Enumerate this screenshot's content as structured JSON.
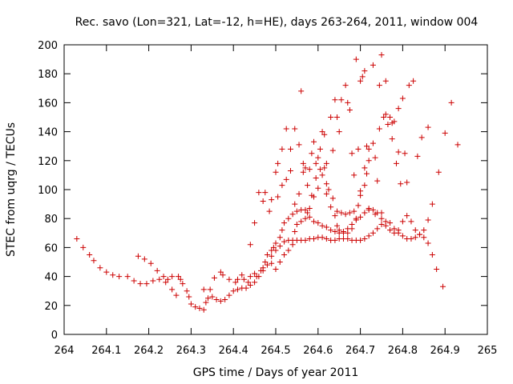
{
  "chart_data": {
    "type": "scatter",
    "title": "Rec. savo (Lon=321, Lat=-12, h=HE), days 263-264, 2011, window 004",
    "xlabel": "GPS time / Days of year 2011",
    "ylabel": "STEC from uqrg / TECUs",
    "xlim": [
      264,
      265
    ],
    "ylim": [
      0,
      200
    ],
    "xticks": [
      264,
      264.1,
      264.2,
      264.3,
      264.4,
      264.5,
      264.6,
      264.7,
      264.8,
      264.9,
      265
    ],
    "xtick_labels": [
      "264",
      "264.1",
      "264.2",
      "264.3",
      "264.4",
      "264.5",
      "264.6",
      "264.7",
      "264.8",
      "264.9",
      "265"
    ],
    "yticks": [
      0,
      20,
      40,
      60,
      80,
      100,
      120,
      140,
      160,
      180,
      200
    ],
    "ytick_labels": [
      "0",
      "20",
      "40",
      "60",
      "80",
      "100",
      "120",
      "140",
      "160",
      "180",
      "200"
    ],
    "grid": false,
    "marker_color": "#cc0000",
    "marker": "plus",
    "points": [
      [
        264.03,
        66
      ],
      [
        264.045,
        60
      ],
      [
        264.06,
        55
      ],
      [
        264.07,
        51
      ],
      [
        264.085,
        46
      ],
      [
        264.1,
        43
      ],
      [
        264.115,
        41
      ],
      [
        264.13,
        40
      ],
      [
        264.15,
        40
      ],
      [
        264.165,
        37
      ],
      [
        264.175,
        54
      ],
      [
        264.19,
        52
      ],
      [
        264.205,
        49
      ],
      [
        264.18,
        35
      ],
      [
        264.195,
        35
      ],
      [
        264.21,
        37
      ],
      [
        264.225,
        38
      ],
      [
        264.22,
        44
      ],
      [
        264.235,
        40
      ],
      [
        264.245,
        38
      ],
      [
        264.24,
        36
      ],
      [
        264.255,
        31
      ],
      [
        264.265,
        27
      ],
      [
        264.255,
        40
      ],
      [
        264.27,
        40
      ],
      [
        264.275,
        38
      ],
      [
        264.28,
        35
      ],
      [
        264.29,
        30
      ],
      [
        264.295,
        26
      ],
      [
        264.3,
        21
      ],
      [
        264.31,
        19
      ],
      [
        264.32,
        18
      ],
      [
        264.33,
        17
      ],
      [
        264.335,
        22
      ],
      [
        264.34,
        25
      ],
      [
        264.35,
        26
      ],
      [
        264.36,
        24
      ],
      [
        264.37,
        23
      ],
      [
        264.38,
        24
      ],
      [
        264.39,
        27
      ],
      [
        264.4,
        30
      ],
      [
        264.41,
        31
      ],
      [
        264.42,
        32
      ],
      [
        264.43,
        32
      ],
      [
        264.44,
        34
      ],
      [
        264.45,
        36
      ],
      [
        264.46,
        40
      ],
      [
        264.47,
        44
      ],
      [
        264.48,
        48
      ],
      [
        264.49,
        54
      ],
      [
        264.5,
        58
      ],
      [
        264.51,
        61
      ],
      [
        264.52,
        64
      ],
      [
        264.53,
        65
      ],
      [
        264.54,
        65
      ],
      [
        264.55,
        65
      ],
      [
        264.56,
        65
      ],
      [
        264.57,
        65
      ],
      [
        264.58,
        66
      ],
      [
        264.59,
        66
      ],
      [
        264.6,
        67
      ],
      [
        264.61,
        67
      ],
      [
        264.62,
        66
      ],
      [
        264.63,
        65
      ],
      [
        264.64,
        65
      ],
      [
        264.65,
        66
      ],
      [
        264.66,
        66
      ],
      [
        264.67,
        66
      ],
      [
        264.68,
        65
      ],
      [
        264.69,
        65
      ],
      [
        264.7,
        65
      ],
      [
        264.71,
        66
      ],
      [
        264.72,
        68
      ],
      [
        264.73,
        70
      ],
      [
        264.74,
        73
      ],
      [
        264.75,
        76
      ],
      [
        264.76,
        78
      ],
      [
        264.77,
        77
      ],
      [
        264.78,
        73
      ],
      [
        264.79,
        70
      ],
      [
        264.8,
        68
      ],
      [
        264.81,
        66
      ],
      [
        264.82,
        66
      ],
      [
        264.83,
        67
      ],
      [
        264.84,
        69
      ],
      [
        264.85,
        72
      ],
      [
        264.86,
        63
      ],
      [
        264.87,
        55
      ],
      [
        264.88,
        45
      ],
      [
        264.895,
        33
      ],
      [
        264.33,
        31
      ],
      [
        264.345,
        31
      ],
      [
        264.355,
        39
      ],
      [
        264.37,
        43
      ],
      [
        264.375,
        41
      ],
      [
        264.39,
        38
      ],
      [
        264.405,
        36
      ],
      [
        264.41,
        38
      ],
      [
        264.42,
        41
      ],
      [
        264.425,
        38
      ],
      [
        264.435,
        36
      ],
      [
        264.44,
        40
      ],
      [
        264.45,
        42
      ],
      [
        264.455,
        40
      ],
      [
        264.465,
        44
      ],
      [
        264.47,
        46
      ],
      [
        264.475,
        50
      ],
      [
        264.48,
        55
      ],
      [
        264.49,
        58
      ],
      [
        264.495,
        60
      ],
      [
        264.5,
        63
      ],
      [
        264.51,
        67
      ],
      [
        264.515,
        72
      ],
      [
        264.52,
        77
      ],
      [
        264.53,
        80
      ],
      [
        264.54,
        83
      ],
      [
        264.55,
        85
      ],
      [
        264.56,
        86
      ],
      [
        264.57,
        86
      ],
      [
        264.575,
        84
      ],
      [
        264.58,
        81
      ],
      [
        264.59,
        78
      ],
      [
        264.6,
        77
      ],
      [
        264.61,
        75
      ],
      [
        264.62,
        74
      ],
      [
        264.63,
        72
      ],
      [
        264.64,
        71
      ],
      [
        264.65,
        70
      ],
      [
        264.66,
        71
      ],
      [
        264.67,
        73
      ],
      [
        264.68,
        76
      ],
      [
        264.69,
        79
      ],
      [
        264.7,
        81
      ],
      [
        264.71,
        84
      ],
      [
        264.72,
        86
      ],
      [
        264.73,
        86
      ],
      [
        264.74,
        84
      ],
      [
        264.75,
        80
      ],
      [
        264.76,
        75
      ],
      [
        264.77,
        72
      ],
      [
        264.78,
        70
      ],
      [
        264.79,
        72
      ],
      [
        264.8,
        78
      ],
      [
        264.81,
        82
      ],
      [
        264.82,
        78
      ],
      [
        264.83,
        72
      ],
      [
        264.84,
        69
      ],
      [
        264.85,
        67
      ],
      [
        264.86,
        79
      ],
      [
        264.87,
        90
      ],
      [
        264.885,
        112
      ],
      [
        264.9,
        139
      ],
      [
        264.915,
        160
      ],
      [
        264.93,
        131
      ],
      [
        264.44,
        62
      ],
      [
        264.45,
        77
      ],
      [
        264.46,
        98
      ],
      [
        264.47,
        92
      ],
      [
        264.475,
        98
      ],
      [
        264.485,
        85
      ],
      [
        264.49,
        93
      ],
      [
        264.5,
        112
      ],
      [
        264.505,
        118
      ],
      [
        264.515,
        128
      ],
      [
        264.525,
        142
      ],
      [
        264.535,
        128
      ],
      [
        264.545,
        142
      ],
      [
        264.555,
        131
      ],
      [
        264.56,
        168
      ],
      [
        264.565,
        118
      ],
      [
        264.57,
        115
      ],
      [
        264.58,
        114
      ],
      [
        264.585,
        125
      ],
      [
        264.59,
        133
      ],
      [
        264.595,
        118
      ],
      [
        264.6,
        122
      ],
      [
        264.605,
        128
      ],
      [
        264.61,
        140
      ],
      [
        264.615,
        138
      ],
      [
        264.62,
        118
      ],
      [
        264.625,
        100
      ],
      [
        264.63,
        150
      ],
      [
        264.635,
        127
      ],
      [
        264.64,
        162
      ],
      [
        264.645,
        150
      ],
      [
        264.65,
        140
      ],
      [
        264.655,
        162
      ],
      [
        264.665,
        172
      ],
      [
        264.67,
        160
      ],
      [
        264.675,
        155
      ],
      [
        264.68,
        125
      ],
      [
        264.685,
        110
      ],
      [
        264.69,
        190
      ],
      [
        264.695,
        128
      ],
      [
        264.7,
        175
      ],
      [
        264.705,
        178
      ],
      [
        264.71,
        182
      ],
      [
        264.715,
        130
      ],
      [
        264.72,
        128
      ],
      [
        264.73,
        186
      ],
      [
        264.735,
        122
      ],
      [
        264.74,
        106
      ],
      [
        264.745,
        172
      ],
      [
        264.75,
        193
      ],
      [
        264.755,
        150
      ],
      [
        264.76,
        175
      ],
      [
        264.765,
        145
      ],
      [
        264.77,
        150
      ],
      [
        264.775,
        146
      ],
      [
        264.78,
        147
      ],
      [
        264.785,
        118
      ],
      [
        264.79,
        156
      ],
      [
        264.795,
        104
      ],
      [
        264.8,
        163
      ],
      [
        264.805,
        125
      ],
      [
        264.81,
        105
      ],
      [
        264.815,
        172
      ],
      [
        264.825,
        175
      ],
      [
        264.835,
        123
      ],
      [
        264.845,
        136
      ],
      [
        264.86,
        143
      ],
      [
        264.49,
        49
      ],
      [
        264.5,
        45
      ],
      [
        264.51,
        50
      ],
      [
        264.52,
        55
      ],
      [
        264.53,
        58
      ],
      [
        264.54,
        62
      ],
      [
        264.545,
        71
      ],
      [
        264.55,
        76
      ],
      [
        264.56,
        78
      ],
      [
        264.57,
        80
      ],
      [
        264.58,
        87
      ],
      [
        264.59,
        95
      ],
      [
        264.6,
        101
      ],
      [
        264.61,
        110
      ],
      [
        264.615,
        115
      ],
      [
        264.62,
        97
      ],
      [
        264.63,
        88
      ],
      [
        264.64,
        82
      ],
      [
        264.645,
        75
      ],
      [
        264.65,
        72
      ],
      [
        264.66,
        70
      ],
      [
        264.67,
        70
      ],
      [
        264.68,
        73
      ],
      [
        264.69,
        80
      ],
      [
        264.695,
        89
      ],
      [
        264.7,
        96
      ],
      [
        264.71,
        103
      ],
      [
        264.715,
        111
      ],
      [
        264.72,
        120
      ],
      [
        264.73,
        132
      ],
      [
        264.745,
        142
      ],
      [
        264.76,
        152
      ],
      [
        264.775,
        135
      ],
      [
        264.79,
        126
      ],
      [
        264.505,
        95
      ],
      [
        264.515,
        103
      ],
      [
        264.525,
        107
      ],
      [
        264.535,
        113
      ],
      [
        264.545,
        90
      ],
      [
        264.555,
        97
      ],
      [
        264.565,
        112
      ],
      [
        264.575,
        103
      ],
      [
        264.585,
        96
      ],
      [
        264.595,
        108
      ],
      [
        264.605,
        114
      ],
      [
        264.62,
        104
      ],
      [
        264.635,
        94
      ],
      [
        264.645,
        85
      ],
      [
        264.655,
        84
      ],
      [
        264.665,
        83
      ],
      [
        264.675,
        84
      ],
      [
        264.685,
        85
      ],
      [
        264.7,
        99
      ],
      [
        264.71,
        115
      ],
      [
        264.72,
        87
      ],
      [
        264.735,
        83
      ],
      [
        264.75,
        84
      ]
    ]
  }
}
